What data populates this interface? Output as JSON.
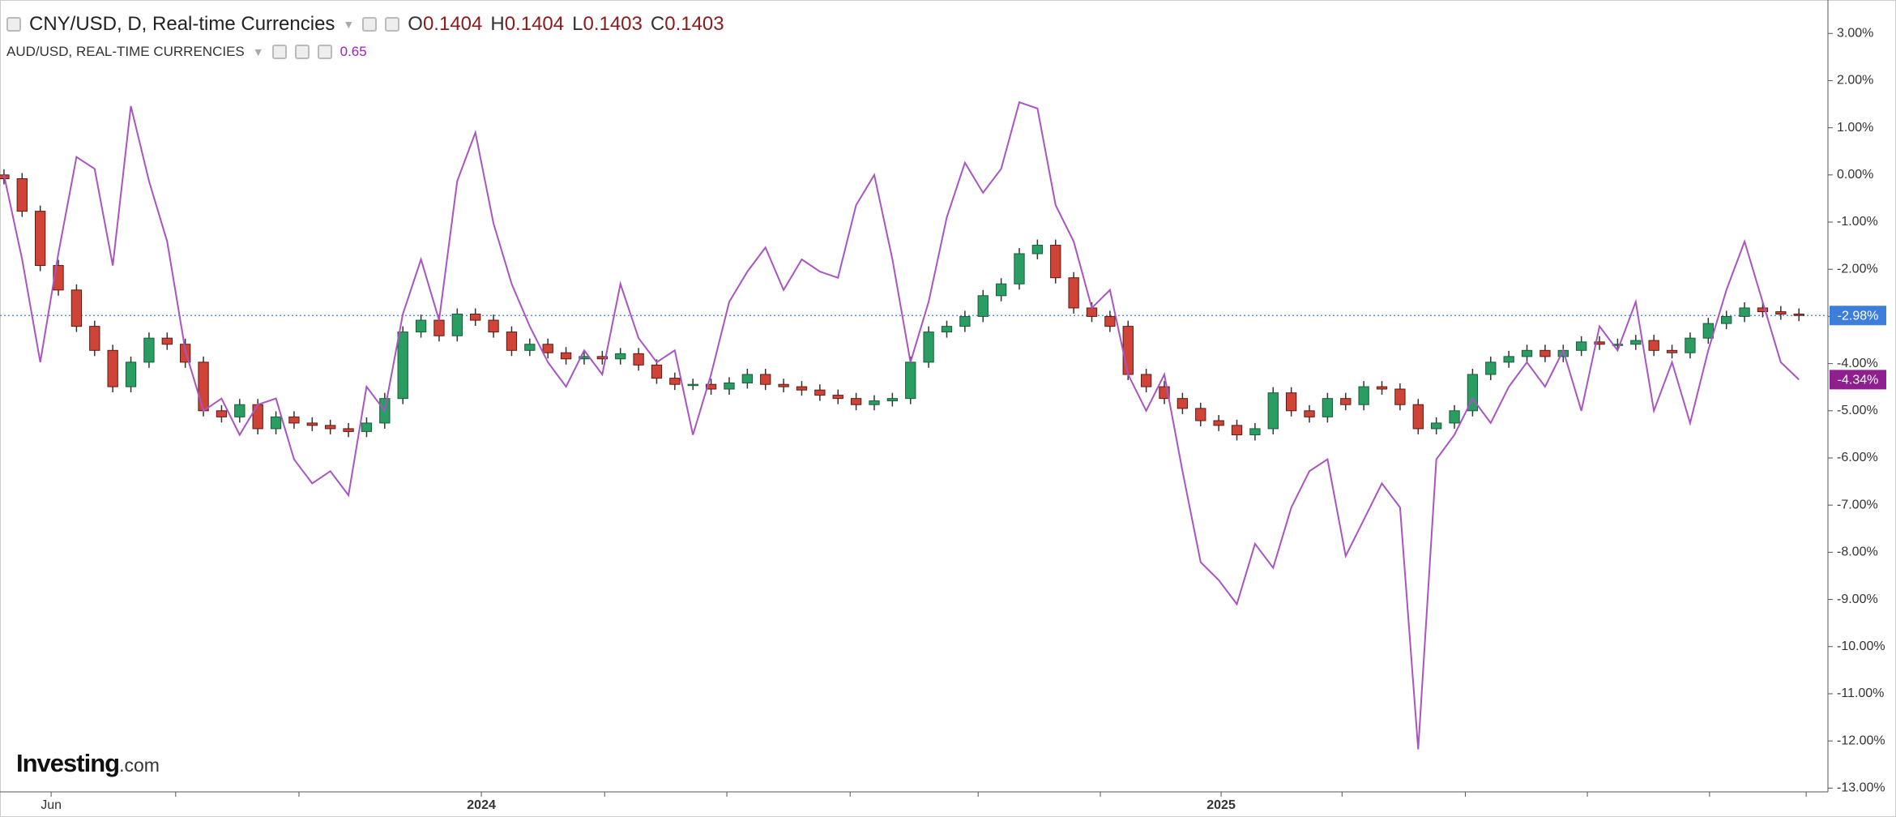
{
  "chart_data": {
    "type": "candlestick",
    "ylim": [
      -13.08,
      3.64
    ],
    "yticks": [
      {
        "value": 3,
        "label": "3.00%"
      },
      {
        "value": 2,
        "label": "2.00%"
      },
      {
        "value": 1,
        "label": "1.00%"
      },
      {
        "value": 0,
        "label": "0.00%"
      },
      {
        "value": -1,
        "label": "-1.00%"
      },
      {
        "value": -2,
        "label": "-2.00%"
      },
      {
        "value": -3,
        "label": "-3.00%"
      },
      {
        "value": -4,
        "label": "-4.00%"
      },
      {
        "value": -5,
        "label": "-5.00%"
      },
      {
        "value": -6,
        "label": "-6.00%"
      },
      {
        "value": -7,
        "label": "-7.00%"
      },
      {
        "value": -8,
        "label": "-8.00%"
      },
      {
        "value": -9,
        "label": "-9.00%"
      },
      {
        "value": -10,
        "label": "-10.00%"
      },
      {
        "value": -11,
        "label": "-11.00%"
      },
      {
        "value": -12,
        "label": "-12.00%"
      },
      {
        "value": -13,
        "label": "-13.00%"
      }
    ],
    "xlim": [
      -0.13,
      100.6
    ],
    "xticks": [
      {
        "value": 2.6,
        "label": "Jun"
      },
      {
        "value": 26.33,
        "label": "2024"
      },
      {
        "value": 67.13,
        "label": "2025"
      }
    ],
    "xticks_minor": [
      9.47,
      16.27,
      33.13,
      39.87,
      46.67,
      53.73,
      60.47,
      73.8,
      80.6,
      87.33,
      94.07,
      99.4
    ],
    "series": [
      {
        "name": "CNY/USD, D, Real-time Currencies",
        "type": "candlestick",
        "up_color": "#2a9d62",
        "down_color": "#cf4436",
        "legend_fields": [
          {
            "label": "O",
            "value": 0.1404
          },
          {
            "label": "H",
            "value": 0.1404
          },
          {
            "label": "L",
            "value": 0.1403
          },
          {
            "label": "C",
            "value": 0.1403
          }
        ],
        "last_label": "-2.98%",
        "last_color": "#3d7ddb",
        "open": [
          0.0,
          -0.08,
          -0.77,
          -1.92,
          -2.44,
          -3.21,
          -3.72,
          -4.49,
          -3.97,
          -3.46,
          -3.59,
          -3.97,
          -5.0,
          -5.13,
          -4.87,
          -5.38,
          -5.13,
          -5.26,
          -5.31,
          -5.38,
          -5.44,
          -5.26,
          -4.74,
          -3.33,
          -3.08,
          -3.41,
          -2.95,
          -3.08,
          -3.33,
          -3.72,
          -3.59,
          -3.77,
          -3.9,
          -3.85,
          -3.9,
          -3.79,
          -4.03,
          -4.31,
          -4.44,
          -4.44,
          -4.54,
          -4.41,
          -4.23,
          -4.44,
          -4.49,
          -4.56,
          -4.67,
          -4.74,
          -4.87,
          -4.79,
          -4.74,
          -3.97,
          -3.33,
          -3.21,
          -3.0,
          -2.56,
          -2.31,
          -1.67,
          -1.49,
          -2.18,
          -2.82,
          -3.0,
          -3.21,
          -4.23,
          -4.49,
          -4.74,
          -4.95,
          -5.21,
          -5.31,
          -5.51,
          -5.38,
          -4.62,
          -5.0,
          -5.13,
          -4.74,
          -4.87,
          -4.49,
          -4.54,
          -4.87,
          -5.38,
          -5.26,
          -5.0,
          -4.23,
          -3.97,
          -3.85,
          -3.72,
          -3.85,
          -3.72,
          -3.54,
          -3.59,
          -3.59,
          -3.51,
          -3.72,
          -3.77,
          -3.46,
          -3.15,
          -3.0,
          -2.82,
          -2.9,
          -2.95
        ],
        "high": [
          0.12,
          0.04,
          -0.65,
          -1.8,
          -2.32,
          -3.09,
          -3.6,
          -3.85,
          -3.34,
          -3.34,
          -3.47,
          -3.85,
          -4.88,
          -4.75,
          -4.75,
          -5.01,
          -5.01,
          -5.14,
          -5.19,
          -5.26,
          -5.14,
          -4.62,
          -3.21,
          -2.96,
          -2.96,
          -2.83,
          -2.83,
          -2.96,
          -3.21,
          -3.47,
          -3.47,
          -3.65,
          -3.73,
          -3.73,
          -3.67,
          -3.67,
          -3.91,
          -4.19,
          -4.32,
          -4.32,
          -4.29,
          -4.11,
          -4.11,
          -4.32,
          -4.37,
          -4.44,
          -4.55,
          -4.62,
          -4.67,
          -4.62,
          -3.85,
          -3.21,
          -3.09,
          -2.88,
          -2.44,
          -2.19,
          -1.55,
          -1.37,
          -1.37,
          -2.06,
          -2.7,
          -2.88,
          -3.09,
          -4.11,
          -4.37,
          -4.62,
          -4.83,
          -5.09,
          -5.19,
          -5.26,
          -4.5,
          -4.5,
          -4.88,
          -4.62,
          -4.62,
          -4.37,
          -4.37,
          -4.42,
          -4.75,
          -5.14,
          -4.88,
          -4.11,
          -3.85,
          -3.73,
          -3.6,
          -3.6,
          -3.6,
          -3.42,
          -3.42,
          -3.47,
          -3.39,
          -3.39,
          -3.6,
          -3.34,
          -3.03,
          -2.88,
          -2.7,
          -2.7,
          -2.78,
          -2.83
        ],
        "low": [
          -0.2,
          -0.89,
          -2.04,
          -2.56,
          -3.33,
          -3.84,
          -4.61,
          -4.61,
          -4.09,
          -3.71,
          -4.09,
          -5.12,
          -5.25,
          -5.25,
          -5.5,
          -5.5,
          -5.38,
          -5.43,
          -5.5,
          -5.56,
          -5.56,
          -5.38,
          -4.86,
          -3.45,
          -3.53,
          -3.53,
          -3.2,
          -3.45,
          -3.84,
          -3.84,
          -3.89,
          -4.02,
          -4.02,
          -4.02,
          -4.02,
          -4.15,
          -4.43,
          -4.56,
          -4.56,
          -4.66,
          -4.66,
          -4.53,
          -4.56,
          -4.61,
          -4.68,
          -4.79,
          -4.86,
          -4.99,
          -4.99,
          -4.91,
          -4.86,
          -4.09,
          -3.45,
          -3.33,
          -3.12,
          -2.68,
          -2.43,
          -1.79,
          -2.3,
          -2.94,
          -3.12,
          -3.33,
          -4.35,
          -4.61,
          -4.86,
          -5.07,
          -5.33,
          -5.43,
          -5.63,
          -5.63,
          -5.5,
          -5.12,
          -5.25,
          -5.25,
          -4.99,
          -4.99,
          -4.66,
          -4.99,
          -5.5,
          -5.5,
          -5.38,
          -5.12,
          -4.35,
          -4.09,
          -3.97,
          -3.97,
          -3.97,
          -3.84,
          -3.71,
          -3.71,
          -3.71,
          -3.84,
          -3.89,
          -3.89,
          -3.58,
          -3.27,
          -3.12,
          -3.02,
          -3.07,
          -3.1
        ],
        "close": [
          -0.08,
          -0.77,
          -1.92,
          -2.44,
          -3.21,
          -3.72,
          -4.49,
          -3.97,
          -3.46,
          -3.59,
          -3.97,
          -5.0,
          -5.13,
          -4.87,
          -5.38,
          -5.13,
          -5.26,
          -5.31,
          -5.38,
          -5.44,
          -5.26,
          -4.74,
          -3.33,
          -3.08,
          -3.41,
          -2.95,
          -3.08,
          -3.33,
          -3.72,
          -3.59,
          -3.77,
          -3.9,
          -3.85,
          -3.9,
          -3.79,
          -4.03,
          -4.31,
          -4.44,
          -4.44,
          -4.54,
          -4.41,
          -4.23,
          -4.44,
          -4.49,
          -4.56,
          -4.67,
          -4.74,
          -4.87,
          -4.79,
          -4.74,
          -3.97,
          -3.33,
          -3.21,
          -3.0,
          -2.56,
          -2.31,
          -1.67,
          -1.49,
          -2.18,
          -2.82,
          -3.0,
          -3.21,
          -4.23,
          -4.49,
          -4.74,
          -4.95,
          -5.21,
          -5.31,
          -5.51,
          -5.38,
          -4.62,
          -5.0,
          -5.13,
          -4.74,
          -4.87,
          -4.49,
          -4.54,
          -4.87,
          -5.38,
          -5.26,
          -5.0,
          -4.23,
          -3.97,
          -3.85,
          -3.72,
          -3.85,
          -3.72,
          -3.54,
          -3.59,
          -3.59,
          -3.51,
          -3.72,
          -3.77,
          -3.46,
          -3.15,
          -3.0,
          -2.82,
          -2.9,
          -2.95,
          -2.98
        ]
      },
      {
        "name": "AUD/USD, REAL-TIME CURRENCIES",
        "type": "line",
        "color": "#a855c2",
        "legend_value": 0.65,
        "last_label": "-4.34%",
        "last_color": "#8e1f8f",
        "values": [
          0.0,
          -1.79,
          -3.97,
          -1.67,
          0.38,
          0.13,
          -1.92,
          1.46,
          -0.13,
          -1.41,
          -3.72,
          -5.0,
          -4.74,
          -5.51,
          -4.87,
          -4.74,
          -6.03,
          -6.54,
          -6.28,
          -6.79,
          -4.49,
          -5.0,
          -2.95,
          -1.79,
          -3.08,
          -0.13,
          0.9,
          -1.03,
          -2.31,
          -3.21,
          -3.97,
          -4.49,
          -3.72,
          -4.23,
          -2.31,
          -3.46,
          -3.97,
          -3.72,
          -5.51,
          -4.23,
          -2.69,
          -2.05,
          -1.54,
          -2.44,
          -1.79,
          -2.05,
          -2.18,
          -0.64,
          0.0,
          -1.79,
          -3.97,
          -2.69,
          -0.9,
          0.26,
          -0.38,
          0.13,
          1.54,
          1.41,
          -0.64,
          -1.41,
          -2.82,
          -2.44,
          -4.23,
          -5.0,
          -4.23,
          -6.28,
          -8.21,
          -8.59,
          -9.1,
          -7.82,
          -8.33,
          -7.05,
          -6.28,
          -6.03,
          -8.08,
          -7.31,
          -6.54,
          -7.05,
          -12.18,
          -6.03,
          -5.51,
          -4.74,
          -5.26,
          -4.49,
          -3.97,
          -4.49,
          -3.72,
          -5.0,
          -3.21,
          -3.72,
          -2.69,
          -5.0,
          -3.97,
          -5.26,
          -3.72,
          -2.44,
          -1.41,
          -2.69,
          -3.97,
          -4.34
        ]
      }
    ]
  },
  "logo": {
    "brand": "Investing",
    "suffix": ".com"
  }
}
